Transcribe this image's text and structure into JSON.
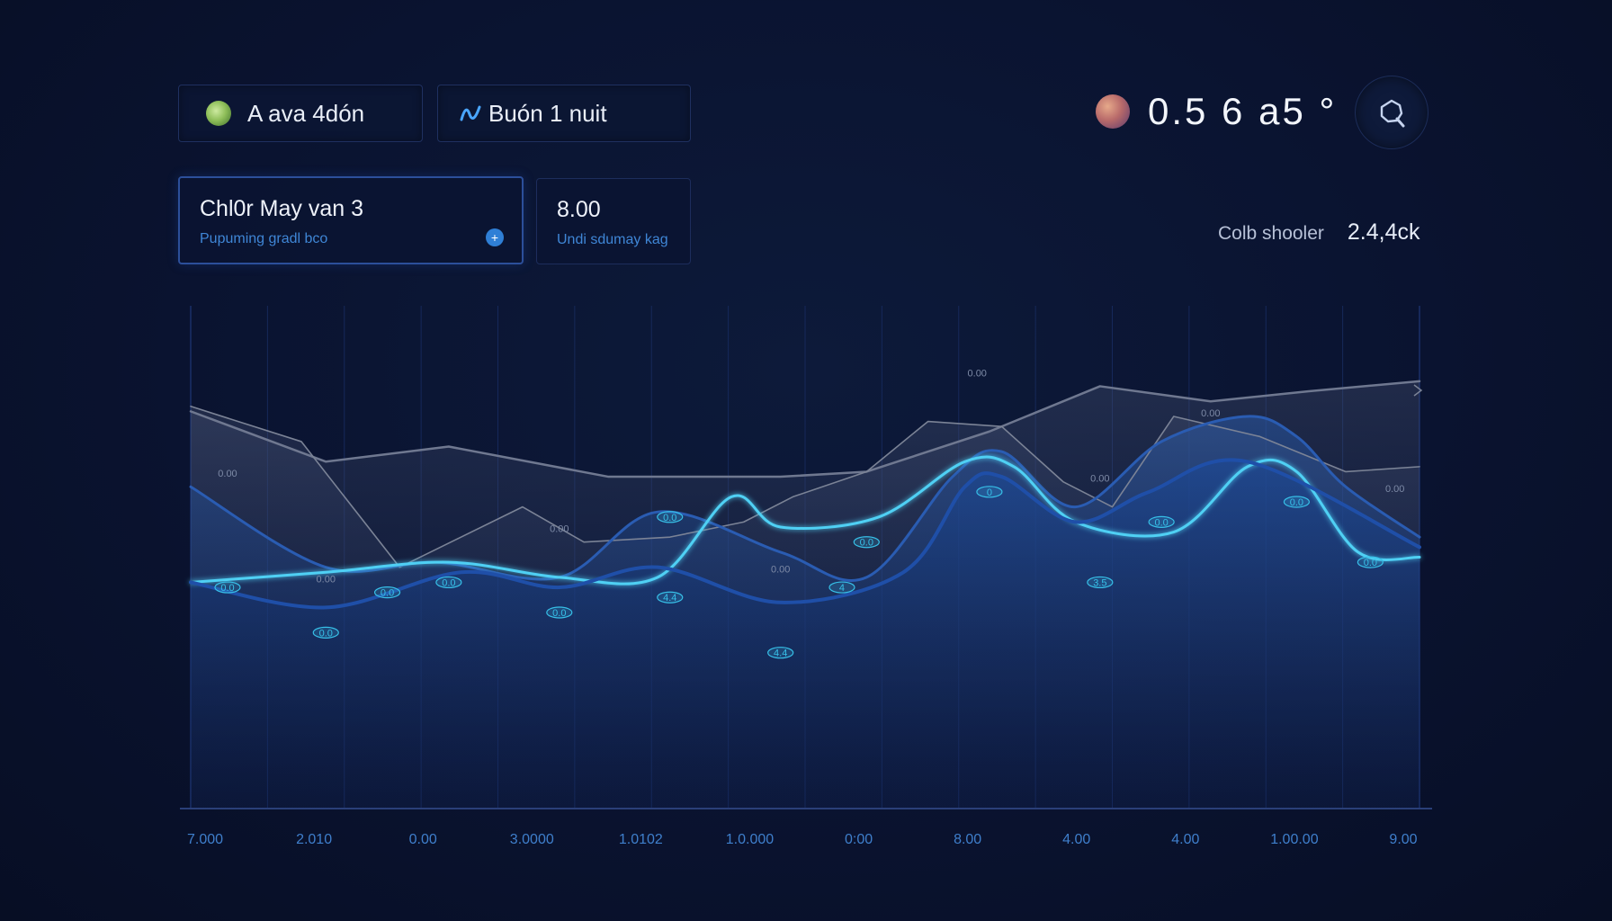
{
  "header": {
    "chip_1": {
      "label": "A ava 4dón",
      "icon": "green-orb-icon"
    },
    "chip_2": {
      "label": "Buón 1 nuit",
      "icon": "wave-icon"
    },
    "readout": {
      "value": "0.5 6 a5 °",
      "icon": "planet-icon"
    },
    "search_icon": "search-icon"
  },
  "cards": {
    "primary": {
      "title": "Chl0r May van 3",
      "subtitle": "Pupuming gradl bco",
      "icon": "info-dot-icon"
    },
    "secondary": {
      "title": "8.00",
      "subtitle": "Undi sdumay kag"
    }
  },
  "side_stat": {
    "label": "Colb shooler",
    "value": "2.4,4ck"
  },
  "colors": {
    "background": "#0a1330",
    "accent_cyan": "#4fd0f4",
    "series_blue": "#2b5fb5",
    "series_gray": "#7b8396",
    "tick_color": "#3f7fcc"
  },
  "chart_data": {
    "type": "line",
    "title": "",
    "xlabel": "",
    "ylabel": "",
    "x_tick_labels": [
      "7.000",
      "2.010",
      "0.00",
      "3.0000",
      "1.0102",
      "1.0.000",
      "0:00",
      "8.00",
      "4.00",
      "4.00",
      "1.00.00",
      "9.00"
    ],
    "ylim": [
      0,
      100
    ],
    "x_range": [
      0,
      100
    ],
    "grid": {
      "vertical": true,
      "horizontal": false
    },
    "series": [
      {
        "style": "gray-upper",
        "x": [
          0,
          11,
          21,
          34,
          48,
          55,
          65,
          74,
          83,
          91,
          100
        ],
        "values": [
          79,
          69,
          72,
          66,
          66,
          67,
          75,
          84,
          81,
          83,
          85
        ]
      },
      {
        "style": "gray-mid",
        "x": [
          0,
          9,
          17,
          27,
          32,
          39,
          45,
          49,
          55,
          60,
          66,
          71,
          75,
          80,
          87,
          94,
          100
        ],
        "values": [
          80,
          73,
          48,
          60,
          53,
          54,
          57,
          62,
          67,
          77,
          76,
          65,
          60,
          78,
          74,
          67,
          68
        ]
      },
      {
        "style": "blue-band",
        "x": [
          0,
          11,
          20,
          30,
          38,
          48,
          55,
          62,
          66,
          72,
          79,
          86,
          90,
          94,
          100
        ],
        "values": [
          64,
          48,
          49,
          46,
          59,
          51,
          46,
          66,
          71,
          60,
          73,
          78,
          74,
          64,
          54
        ]
      },
      {
        "style": "cyan",
        "x": [
          0,
          11,
          21,
          30,
          38,
          44,
          48,
          56,
          63,
          67,
          72,
          80,
          86,
          90,
          95,
          100
        ],
        "values": [
          45,
          47,
          49,
          46,
          46,
          62,
          56,
          58,
          69,
          68,
          57,
          55,
          68,
          67,
          51,
          50
        ]
      },
      {
        "style": "blue-lower",
        "x": [
          0,
          11,
          22,
          30,
          38,
          48,
          58,
          63,
          66,
          72,
          78,
          86,
          100
        ],
        "values": [
          45,
          40,
          47,
          44,
          48,
          41,
          47,
          64,
          66,
          57,
          63,
          69,
          52
        ]
      }
    ],
    "point_labels": [
      {
        "x": 3,
        "y": 66,
        "text": "0.00"
      },
      {
        "x": 11,
        "y": 45,
        "text": "0.00"
      },
      {
        "x": 30,
        "y": 55,
        "text": "0.00"
      },
      {
        "x": 48,
        "y": 47,
        "text": "0.00"
      },
      {
        "x": 64,
        "y": 86,
        "text": "0.00"
      },
      {
        "x": 74,
        "y": 65,
        "text": "0.00"
      },
      {
        "x": 83,
        "y": 78,
        "text": "0.00"
      },
      {
        "x": 98,
        "y": 63,
        "text": "0.00"
      }
    ],
    "markers": [
      {
        "x": 3,
        "y": 44,
        "text": "0.0"
      },
      {
        "x": 11,
        "y": 35,
        "text": "0.0"
      },
      {
        "x": 16,
        "y": 43,
        "text": "0.0"
      },
      {
        "x": 21,
        "y": 45,
        "text": "0.0"
      },
      {
        "x": 30,
        "y": 39,
        "text": "0.0"
      },
      {
        "x": 39,
        "y": 42,
        "text": "4.4"
      },
      {
        "x": 39,
        "y": 58,
        "text": "0.0"
      },
      {
        "x": 48,
        "y": 31,
        "text": "4.4"
      },
      {
        "x": 53,
        "y": 44,
        "text": "4"
      },
      {
        "x": 55,
        "y": 53,
        "text": "0.0"
      },
      {
        "x": 65,
        "y": 63,
        "text": "0"
      },
      {
        "x": 74,
        "y": 45,
        "text": "3.5"
      },
      {
        "x": 79,
        "y": 57,
        "text": "0.0"
      },
      {
        "x": 90,
        "y": 61,
        "text": "0.0"
      },
      {
        "x": 96,
        "y": 49,
        "text": "0.0"
      }
    ]
  }
}
